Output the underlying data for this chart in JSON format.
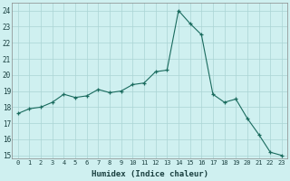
{
  "x": [
    0,
    1,
    2,
    3,
    4,
    5,
    6,
    7,
    8,
    9,
    10,
    11,
    12,
    13,
    14,
    15,
    16,
    17,
    18,
    19,
    20,
    21,
    22,
    23
  ],
  "y": [
    17.6,
    17.9,
    18.0,
    18.3,
    18.8,
    18.6,
    18.7,
    19.1,
    18.9,
    19.0,
    19.4,
    19.5,
    20.2,
    20.3,
    24.0,
    23.2,
    22.5,
    18.8,
    18.3,
    18.5,
    17.3,
    16.3,
    15.2,
    15.0
  ],
  "xlabel": "Humidex (Indice chaleur)",
  "ylabel": "",
  "bg_color": "#cff0f0",
  "line_color": "#1a6b5e",
  "marker_color": "#1a6b5e",
  "grid_color": "#aad4d4",
  "ylim": [
    14.8,
    24.5
  ],
  "xlim": [
    -0.5,
    23.5
  ],
  "yticks": [
    15,
    16,
    17,
    18,
    19,
    20,
    21,
    22,
    23,
    24
  ],
  "xticks": [
    0,
    1,
    2,
    3,
    4,
    5,
    6,
    7,
    8,
    9,
    10,
    11,
    12,
    13,
    14,
    15,
    16,
    17,
    18,
    19,
    20,
    21,
    22,
    23
  ]
}
